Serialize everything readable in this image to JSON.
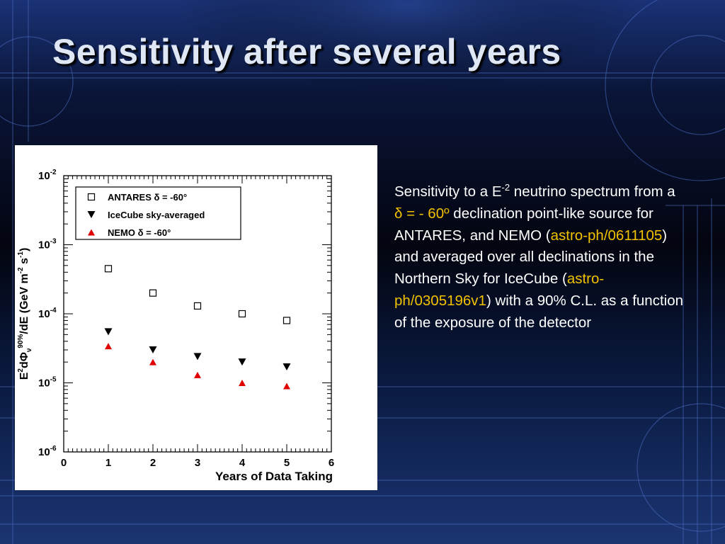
{
  "slide": {
    "title": "Sensitivity after several years",
    "description": {
      "p1": "Sensitivity to a E",
      "p1_sup": "-2",
      "p2": " neutrino spectrum from a ",
      "p3_hl": "δ  = - 60º",
      "p4": " declination point-like source for ANTARES, and NEMO (",
      "p5_hl": "astro-ph/0611105",
      "p6": ") and averaged over all declinations in the Northern Sky for IceCube (",
      "p7_hl": "astro-ph/0305196v1",
      "p8": ") with a 90% C.L. as a function of the exposure of the detector"
    },
    "colors": {
      "background": "#06081a",
      "title": "#dfe6f4",
      "highlight": "#f2c200",
      "text": "#ffffff"
    }
  },
  "chart_data": {
    "type": "scatter",
    "xlabel": "Years of Data Taking",
    "ylabel": {
      "parts": [
        {
          "t": "E",
          "s": "n"
        },
        {
          "t": "2",
          "s": "sup"
        },
        {
          "t": "dΦ",
          "s": "n"
        },
        {
          "t": "ν",
          "s": "sub"
        },
        {
          "t": "90%",
          "s": "sup"
        },
        {
          "t": "/dE (GeV m",
          "s": "n"
        },
        {
          "t": "-2",
          "s": "sup"
        },
        {
          "t": " s",
          "s": "n"
        },
        {
          "t": "-1",
          "s": "sup"
        },
        {
          "t": ")",
          "s": "n"
        }
      ]
    },
    "x_range": [
      0,
      6
    ],
    "y_range": [
      1e-06,
      0.01
    ],
    "y_scale": "log",
    "x_ticks": [
      "0",
      "1",
      "2",
      "3",
      "4",
      "5",
      "6"
    ],
    "y_ticks": [
      {
        "base": "10",
        "exp": "-2"
      },
      {
        "base": "10",
        "exp": "-3"
      },
      {
        "base": "10",
        "exp": "-4"
      },
      {
        "base": "10",
        "exp": "-5"
      },
      {
        "base": "10",
        "exp": "-6"
      }
    ],
    "legend_position": "top-left",
    "grid": false,
    "series": [
      {
        "name": "ANTARES δ = -60°",
        "marker": "open-square",
        "color": "#000000",
        "x": [
          1,
          2,
          3,
          4,
          5
        ],
        "y": [
          0.00045,
          0.0002,
          0.00013,
          0.0001,
          8e-05
        ]
      },
      {
        "name": "IceCube sky-averaged",
        "marker": "filled-triangle-down",
        "color": "#000000",
        "x": [
          1,
          2,
          3,
          4,
          5
        ],
        "y": [
          5.5e-05,
          3e-05,
          2.4e-05,
          2e-05,
          1.7e-05
        ]
      },
      {
        "name": "NEMO δ = -60°",
        "marker": "filled-triangle-up",
        "color": "#e00000",
        "x": [
          1,
          2,
          3,
          4,
          5
        ],
        "y": [
          3.4e-05,
          2e-05,
          1.3e-05,
          1e-05,
          9e-06
        ]
      }
    ]
  }
}
